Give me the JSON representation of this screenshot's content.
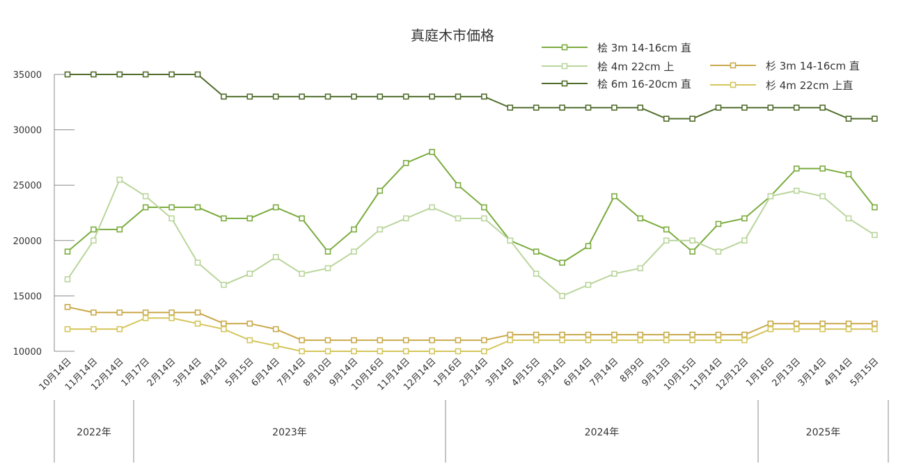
{
  "chart_data": {
    "type": "line",
    "title": "真庭木市価格",
    "ylim": [
      10000,
      35000
    ],
    "yticks": [
      10000,
      15000,
      20000,
      25000,
      30000,
      35000
    ],
    "categories": [
      "10月14日",
      "11月14日",
      "12月14日",
      "1月17日",
      "2月14日",
      "3月14日",
      "4月14日",
      "5月15日",
      "6月14日",
      "7月14日",
      "8月10日",
      "9月14日",
      "10月16日",
      "11月14日",
      "12月14日",
      "1月16日",
      "2月14日",
      "3月14日",
      "4月15日",
      "5月14日",
      "6月14日",
      "7月14日",
      "8月9日",
      "9月13日",
      "10月15日",
      "11月14日",
      "12月12日",
      "1月16日",
      "2月13日",
      "3月14日",
      "4月14日",
      "5月15日"
    ],
    "year_groups": [
      {
        "label": "2022年",
        "start": 0,
        "end": 2
      },
      {
        "label": "2023年",
        "start": 3,
        "end": 14
      },
      {
        "label": "2024年",
        "start": 15,
        "end": 26
      },
      {
        "label": "2025年",
        "start": 27,
        "end": 31
      }
    ],
    "grid": false,
    "legend_position": "top-right",
    "series": [
      {
        "name": "桧 3m 14-16cm 直",
        "color": "#7aab3e",
        "values": [
          19000,
          21000,
          21000,
          23000,
          23000,
          23000,
          22000,
          22000,
          23000,
          22000,
          19000,
          21000,
          24500,
          27000,
          28000,
          25000,
          23000,
          20000,
          19000,
          18000,
          19500,
          24000,
          22000,
          21000,
          19000,
          21500,
          22000,
          24000,
          26500,
          26500,
          26000,
          23000
        ]
      },
      {
        "name": "桧 4m 22cm 上",
        "color": "#b9d59b",
        "values": [
          16500,
          20000,
          25500,
          24000,
          22000,
          18000,
          16000,
          17000,
          18500,
          17000,
          17500,
          19000,
          21000,
          22000,
          23000,
          22000,
          22000,
          20000,
          17000,
          15000,
          16000,
          17000,
          17500,
          20000,
          20000,
          19000,
          20000,
          24000,
          24500,
          24000,
          22000,
          20500
        ]
      },
      {
        "name": "桧 6m 16-20cm 直",
        "color": "#4f6b2a",
        "values": [
          35000,
          35000,
          35000,
          35000,
          35000,
          35000,
          33000,
          33000,
          33000,
          33000,
          33000,
          33000,
          33000,
          33000,
          33000,
          33000,
          33000,
          32000,
          32000,
          32000,
          32000,
          32000,
          32000,
          31000,
          31000,
          32000,
          32000,
          32000,
          32000,
          32000,
          31000,
          31000
        ]
      },
      {
        "name": "杉 3m 14-16cm 直",
        "color": "#c9a94a",
        "values": [
          14000,
          13500,
          13500,
          13500,
          13500,
          13500,
          12500,
          12500,
          12000,
          11000,
          11000,
          11000,
          11000,
          11000,
          11000,
          11000,
          11000,
          11500,
          11500,
          11500,
          11500,
          11500,
          11500,
          11500,
          11500,
          11500,
          11500,
          12500,
          12500,
          12500,
          12500,
          12500
        ]
      },
      {
        "name": "杉 4m 22cm 上直",
        "color": "#d4c55a",
        "values": [
          12000,
          12000,
          12000,
          13000,
          13000,
          12500,
          12000,
          11000,
          10500,
          10000,
          10000,
          10000,
          10000,
          10000,
          10000,
          10000,
          10000,
          11000,
          11000,
          11000,
          11000,
          11000,
          11000,
          11000,
          11000,
          11000,
          11000,
          12000,
          12000,
          12000,
          12000,
          12000
        ]
      }
    ]
  }
}
